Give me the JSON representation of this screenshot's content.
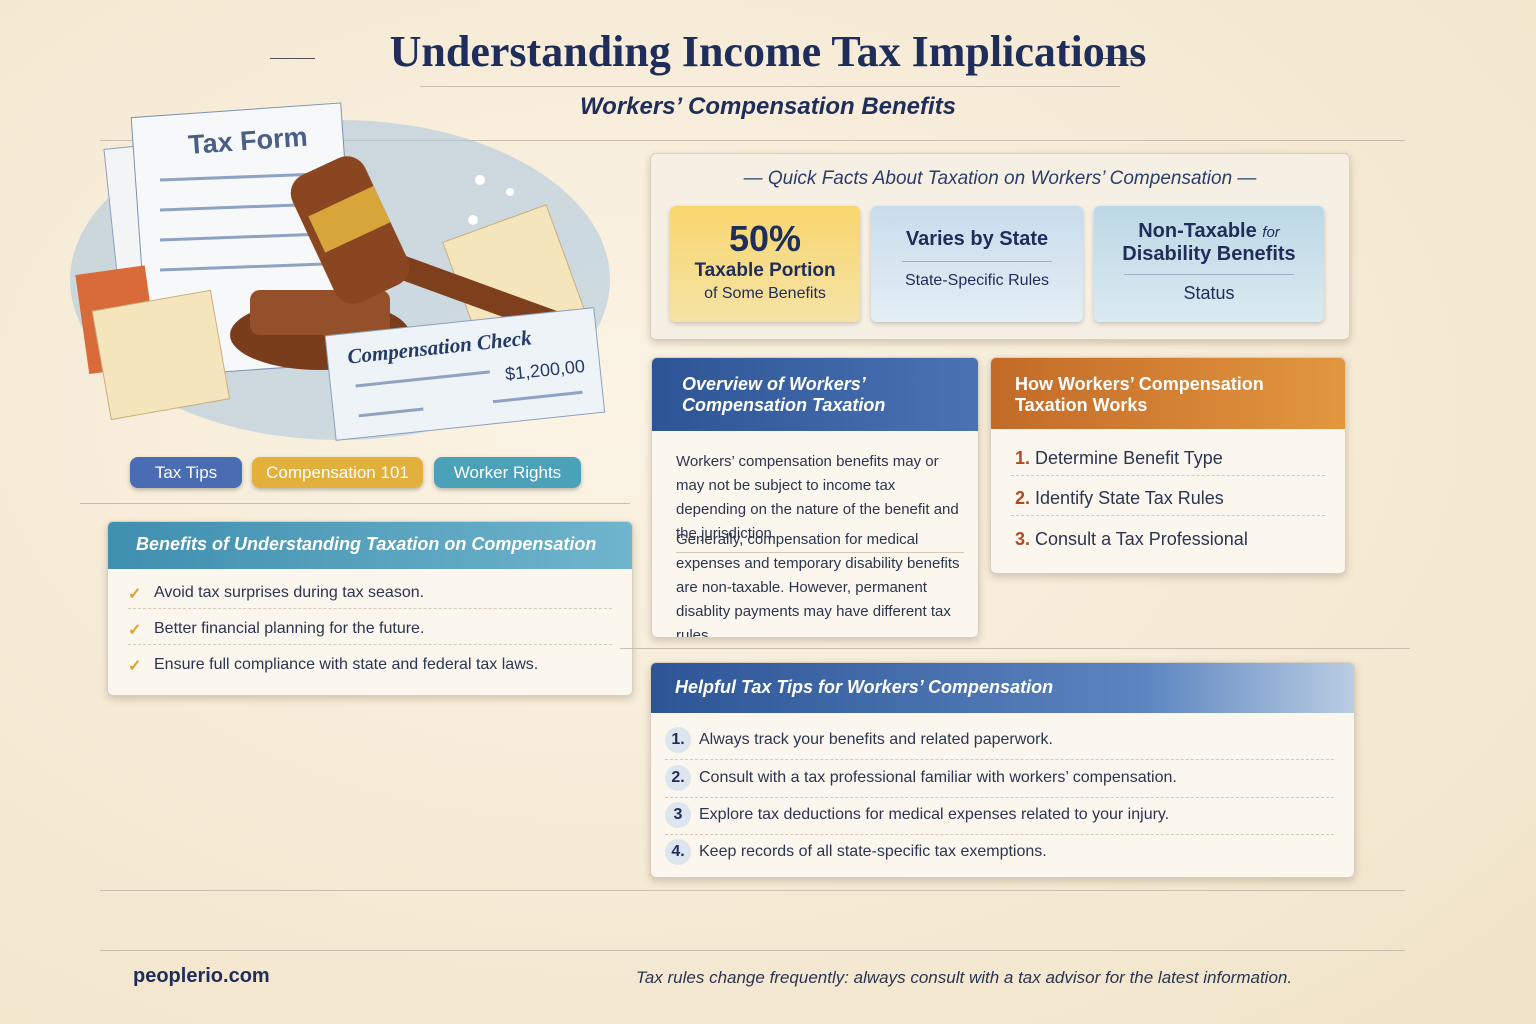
{
  "header": {
    "title": "Understanding Income Tax Implications",
    "subtitle": "Workers’ Compensation Benefits"
  },
  "illustration": {
    "form_label": "Tax Form",
    "check_label": "Compensation Check",
    "check_amount": "$1,200,00"
  },
  "tags": [
    "Tax Tips",
    "Compensation 101",
    "Worker Rights"
  ],
  "benefits": {
    "title": "Benefits of Understanding Taxation on Compensation",
    "items": [
      "Avoid tax surprises during tax season.",
      "Better financial planning for the future.",
      "Ensure full compliance with state and federal tax laws."
    ]
  },
  "quick_facts": {
    "title": "Quick Facts About Taxation on Workers’ Compensation",
    "facts": [
      {
        "value": "50%",
        "label": "Taxable Portion",
        "sublabel": "of Some Benefits"
      },
      {
        "label": "Varies by State",
        "sublabel": "State-Specific Rules"
      },
      {
        "label": "Non-Taxable",
        "connector": "for",
        "label2": "Disability Benefits",
        "sublabel": "Status"
      }
    ]
  },
  "overview": {
    "title": "Overview of Workers’ Compensation Taxation",
    "paragraphs": [
      "Workers’ compensation benefits may or may not be subject to income tax depending on the nature of the benefit and the jurisdiction.",
      "Generally, compensation for medical expenses and temporary disability benefits are non-taxable. However, permanent disablity payments may have different tax rules."
    ]
  },
  "how_it_works": {
    "title": "How Workers’ Compensation Taxation Works",
    "steps": [
      {
        "number": "1.",
        "text": "Determine Benefit Type"
      },
      {
        "number": "2.",
        "text": "Identify State Tax Rules"
      },
      {
        "number": "3.",
        "text": "Consult a Tax Professional"
      }
    ]
  },
  "tips": {
    "title": "Helpful Tax Tips for Workers’ Compensation",
    "items": [
      {
        "number": "1.",
        "text": "Always track your benefits and related paperwork."
      },
      {
        "number": "2.",
        "text": "Consult with a tax professional familiar with workers’ compensation."
      },
      {
        "number": "3",
        "text": "Explore tax deductions for medical expenses related to your injury."
      },
      {
        "number": "4.",
        "text": "Keep records of all state-specific tax exemptions."
      }
    ]
  },
  "footer": {
    "site": "peoplerio.com",
    "disclaimer": "Tax rules change frequently: always consult with a tax advisor for the latest information."
  }
}
